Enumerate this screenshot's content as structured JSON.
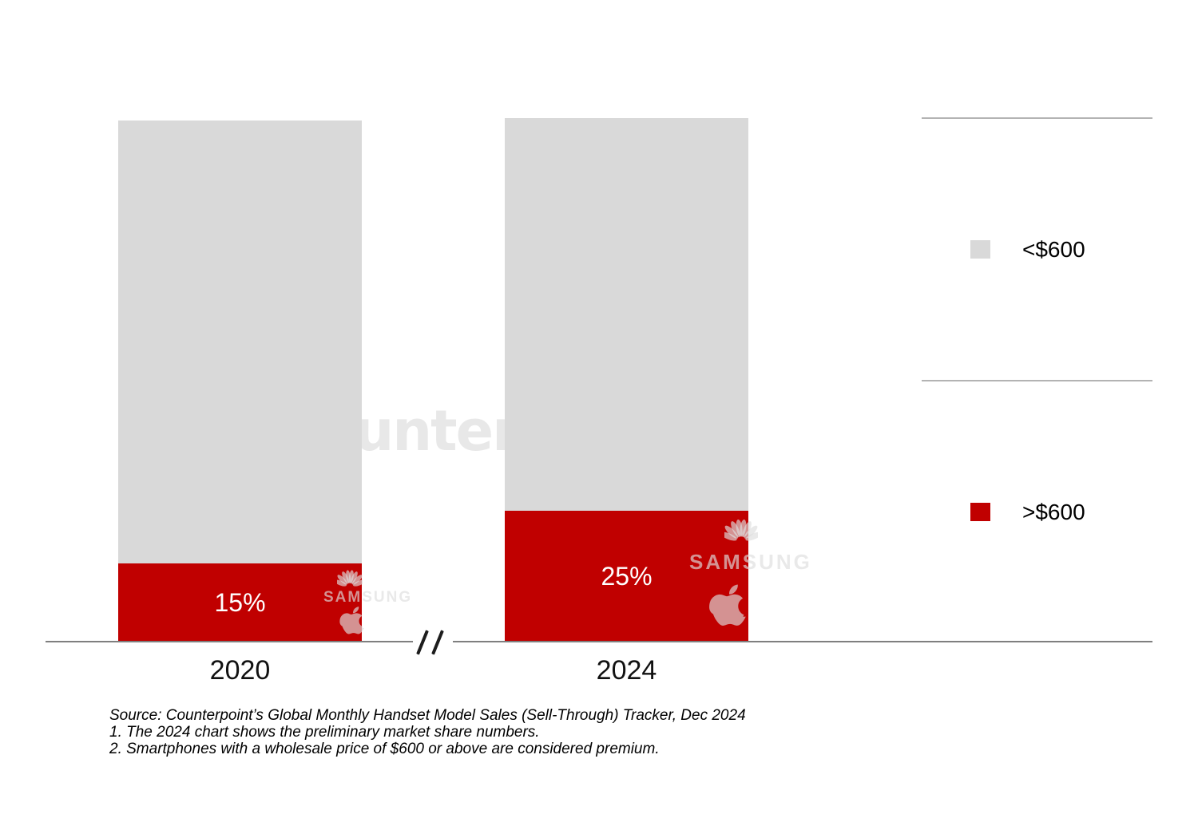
{
  "chart_data": {
    "type": "bar",
    "variant": "100-percent-stacked-column",
    "title": "",
    "categories": [
      "2020",
      "2024"
    ],
    "series": [
      {
        "name": ">$600",
        "color": "#c00000",
        "values": [
          15,
          25
        ]
      },
      {
        "name": "<$600",
        "color": "#d9d9d9",
        "values": [
          85,
          75
        ]
      }
    ],
    "value_labels": [
      "15%",
      "25%"
    ],
    "ylim": [
      0,
      100
    ],
    "grid": false,
    "legend_position": "right",
    "axis_break_symbol": "//"
  },
  "legend": {
    "items": [
      {
        "label": "<$600",
        "color": "#d9d9d9"
      },
      {
        "label": ">$600",
        "color": "#c00000"
      }
    ]
  },
  "footnotes": {
    "source": "Source: Counterpoint’s Global Monthly Handset Model Sales (Sell-Through) Tracker, Dec 2024",
    "note1": "1. The 2024 chart shows the preliminary market share numbers.",
    "note2": "2. Smartphones with a wholesale price of $600 or above are considered premium."
  },
  "watermarks": {
    "counterpoint_wordmark": "Counterpoint",
    "samsung_wordmark": "SAMSUNG",
    "icons": [
      "counterpoint-logo-icon",
      "huawei-flower-icon",
      "apple-icon"
    ]
  },
  "colors": {
    "bar_red": "#c00000",
    "bar_gray": "#d9d9d9",
    "axis_line": "#7f7f7f",
    "legend_divider": "#b3b3b3"
  }
}
